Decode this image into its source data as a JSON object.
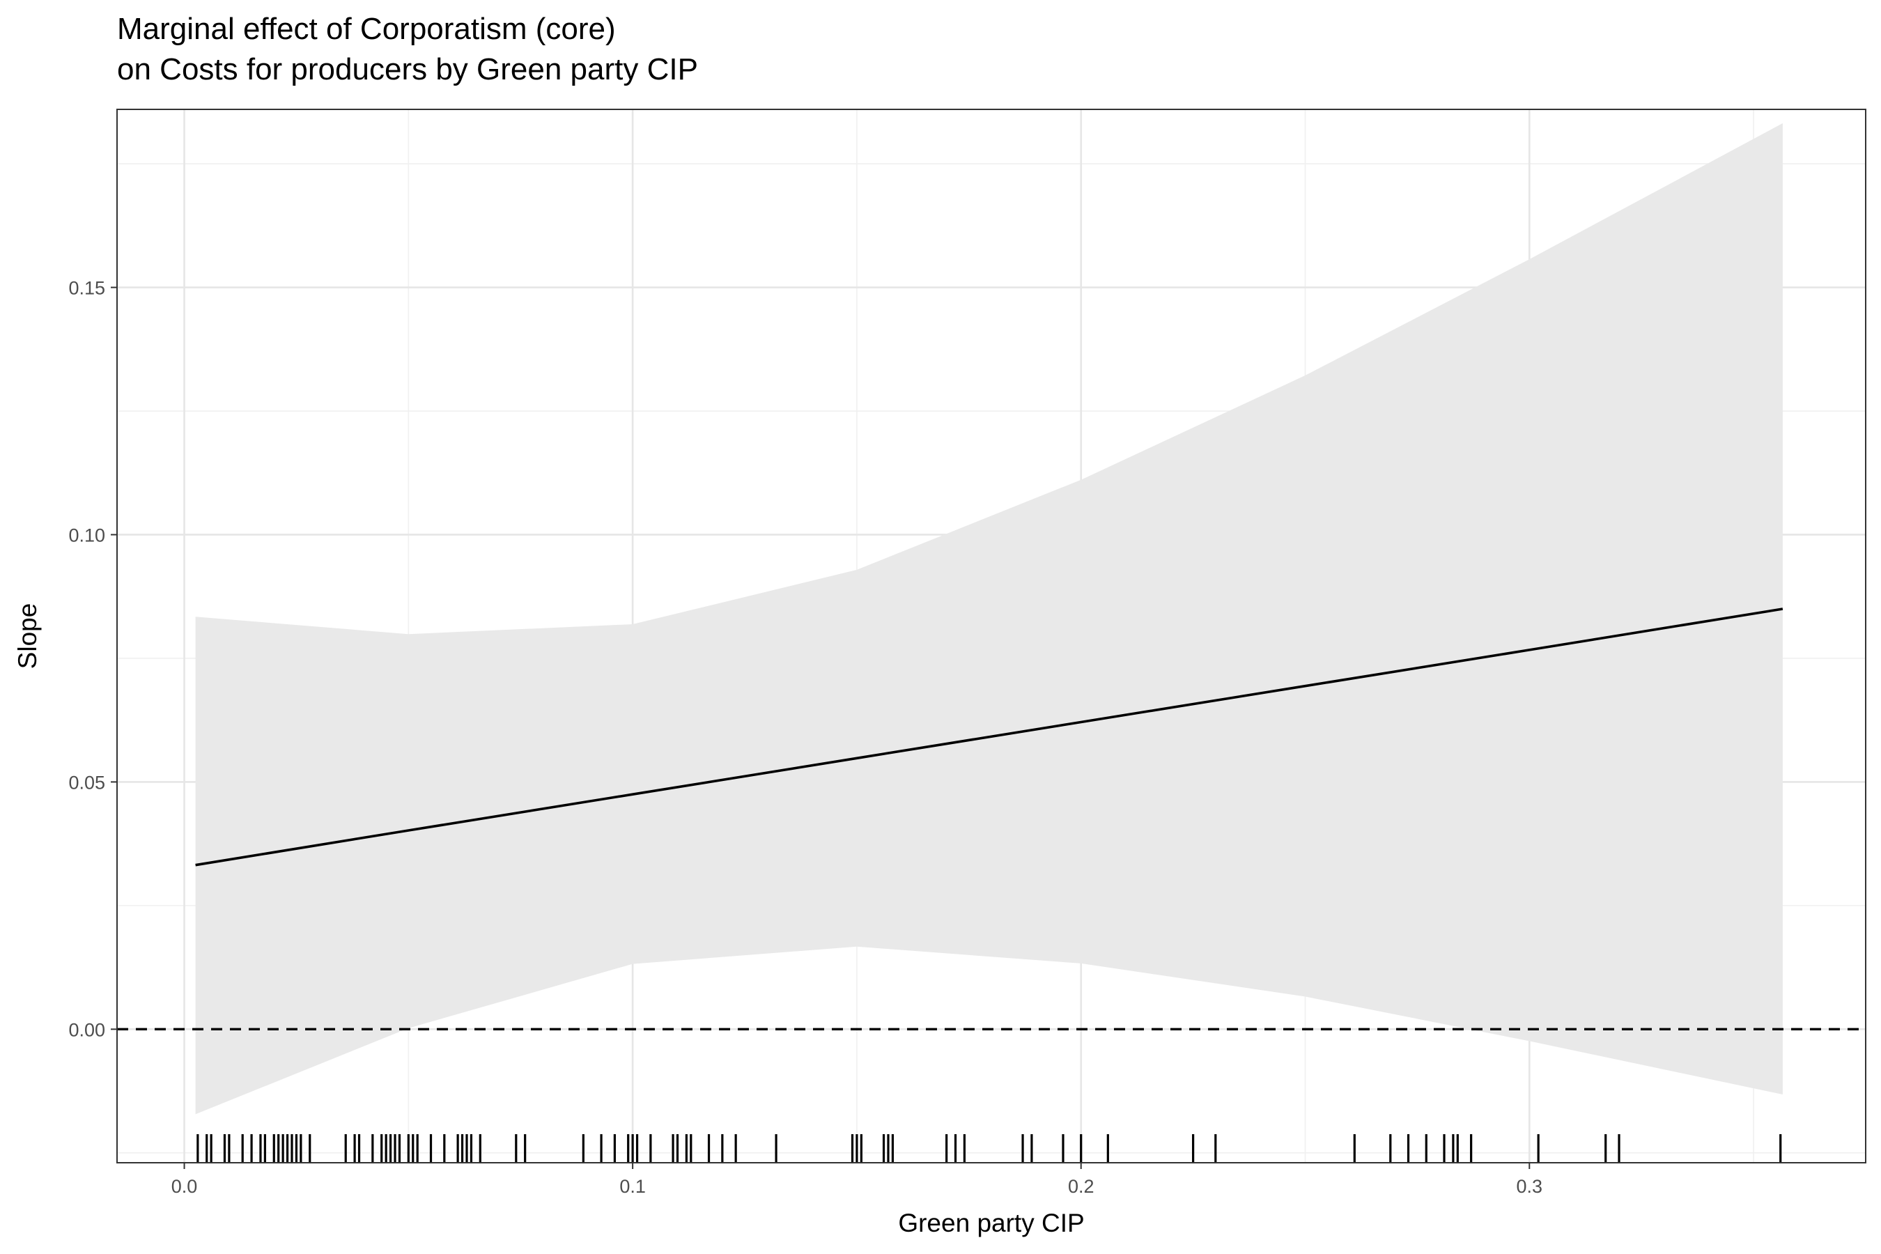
{
  "chart_data": {
    "type": "line",
    "title": "Marginal effect of Corporatism (core)",
    "subtitle": "on Costs for producers by Green party CIP",
    "xlabel": "Green party CIP",
    "ylabel": "Slope",
    "xlim": [
      -0.015,
      0.375
    ],
    "ylim": [
      -0.027,
      0.186
    ],
    "x_ticks": [
      0.0,
      0.1,
      0.2,
      0.3
    ],
    "x_tick_labels": [
      "0.0",
      "0.1",
      "0.2",
      "0.3"
    ],
    "y_ticks": [
      0.0,
      0.05,
      0.1,
      0.15
    ],
    "y_tick_labels": [
      "0.00",
      "0.05",
      "0.10",
      "0.15"
    ],
    "grid": true,
    "reference_line": {
      "y": 0,
      "style": "dashed"
    },
    "series": [
      {
        "x": [
          0.0025,
          0.05,
          0.1,
          0.15,
          0.2,
          0.25,
          0.3,
          0.3565
        ],
        "y": [
          0.0332,
          0.0402,
          0.0475,
          0.0548,
          0.0621,
          0.0694,
          0.0767,
          0.085
        ],
        "lower": [
          -0.0172,
          0.0002,
          0.0132,
          0.0167,
          0.0133,
          0.0066,
          -0.0024,
          -0.0132
        ],
        "upper": [
          0.0834,
          0.0799,
          0.0819,
          0.0929,
          0.1111,
          0.1322,
          0.1557,
          0.1832
        ]
      }
    ],
    "rug_x": [
      0.003,
      0.005,
      0.006,
      0.009,
      0.01,
      0.013,
      0.015,
      0.017,
      0.018,
      0.02,
      0.021,
      0.022,
      0.023,
      0.024,
      0.025,
      0.026,
      0.028,
      0.036,
      0.038,
      0.039,
      0.042,
      0.044,
      0.045,
      0.046,
      0.047,
      0.048,
      0.05,
      0.051,
      0.052,
      0.055,
      0.058,
      0.061,
      0.062,
      0.063,
      0.064,
      0.066,
      0.074,
      0.076,
      0.089,
      0.093,
      0.096,
      0.099,
      0.1,
      0.101,
      0.104,
      0.109,
      0.11,
      0.112,
      0.113,
      0.117,
      0.12,
      0.123,
      0.132,
      0.149,
      0.15,
      0.151,
      0.156,
      0.157,
      0.158,
      0.17,
      0.172,
      0.174,
      0.187,
      0.189,
      0.196,
      0.2,
      0.206,
      0.225,
      0.23,
      0.261,
      0.269,
      0.273,
      0.277,
      0.281,
      0.283,
      0.284,
      0.287,
      0.302,
      0.317,
      0.32,
      0.356
    ]
  }
}
